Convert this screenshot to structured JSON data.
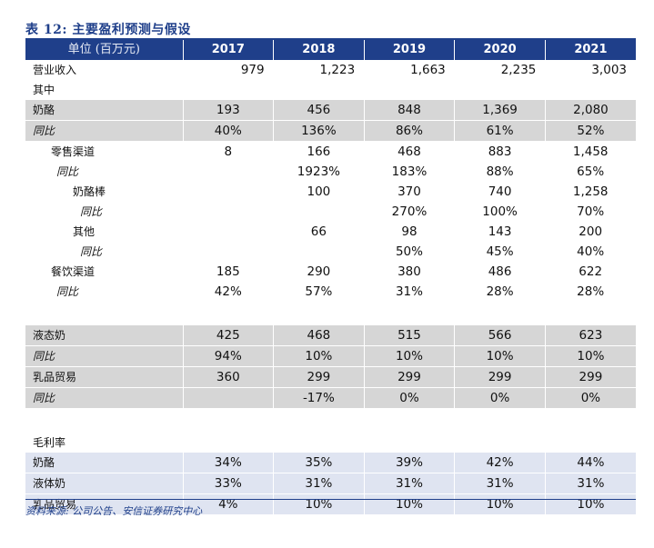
{
  "title": "表 12:  主要盈利预测与假设",
  "header": {
    "label": "单位 (百万元)",
    "years": [
      "2017",
      "2018",
      "2019",
      "2020",
      "2021"
    ]
  },
  "rows": [
    {
      "label": "营业收入",
      "values": [
        "979",
        "1,223",
        "1,663",
        "2,235",
        "3,003"
      ]
    },
    {
      "label": "其中",
      "values": [
        "",
        "",
        "",
        "",
        ""
      ]
    },
    {
      "label": "奶酪",
      "values": [
        "193",
        "456",
        "848",
        "1,369",
        "2,080"
      ]
    },
    {
      "label": "同比",
      "values": [
        "40%",
        "136%",
        "86%",
        "61%",
        "52%"
      ]
    },
    {
      "label": "零售渠道",
      "values": [
        "8",
        "166",
        "468",
        "883",
        "1,458"
      ]
    },
    {
      "label": "同比",
      "values": [
        "",
        "1923%",
        "183%",
        "88%",
        "65%"
      ]
    },
    {
      "label": "奶酪棒",
      "values": [
        "",
        "100",
        "370",
        "740",
        "1,258"
      ]
    },
    {
      "label": "同比",
      "values": [
        "",
        "",
        "270%",
        "100%",
        "70%"
      ]
    },
    {
      "label": "其他",
      "values": [
        "",
        "66",
        "98",
        "143",
        "200"
      ]
    },
    {
      "label": "同比",
      "values": [
        "",
        "",
        "50%",
        "45%",
        "40%"
      ]
    },
    {
      "label": "餐饮渠道",
      "values": [
        "185",
        "290",
        "380",
        "486",
        "622"
      ]
    },
    {
      "label": "同比",
      "values": [
        "42%",
        "57%",
        "31%",
        "28%",
        "28%"
      ]
    },
    {
      "label": "液态奶",
      "values": [
        "425",
        "468",
        "515",
        "566",
        "623"
      ]
    },
    {
      "label": "同比",
      "values": [
        "94%",
        "10%",
        "10%",
        "10%",
        "10%"
      ]
    },
    {
      "label": "乳品贸易",
      "values": [
        "360",
        "299",
        "299",
        "299",
        "299"
      ]
    },
    {
      "label": "同比",
      "values": [
        "",
        "-17%",
        "0%",
        "0%",
        "0%"
      ]
    },
    {
      "label": "毛利率",
      "values": [
        "",
        "",
        "",
        "",
        ""
      ]
    },
    {
      "label": "奶酪",
      "values": [
        "34%",
        "35%",
        "39%",
        "42%",
        "44%"
      ]
    },
    {
      "label": "液体奶",
      "values": [
        "33%",
        "31%",
        "31%",
        "31%",
        "31%"
      ]
    },
    {
      "label": "乳品贸易",
      "values": [
        "4%",
        "10%",
        "10%",
        "10%",
        "10%"
      ]
    }
  ],
  "source": "资料来源:  公司公告、安信证券研究中心"
}
